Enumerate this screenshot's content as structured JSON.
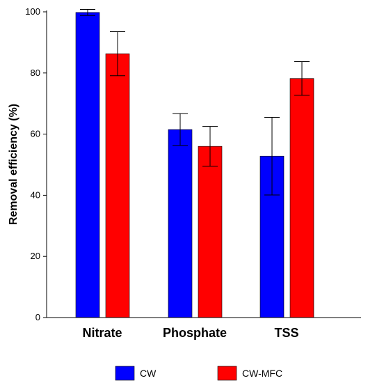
{
  "chart_data": {
    "type": "bar",
    "categories": [
      "Nitrate",
      "Phosphate",
      "TSS"
    ],
    "series": [
      {
        "name": "CW",
        "color": "#0000ff",
        "values": [
          99.8,
          61.5,
          52.8
        ],
        "error": [
          1.0,
          5.2,
          12.7
        ]
      },
      {
        "name": "CW-MFC",
        "color": "#ff0000",
        "values": [
          86.3,
          56.0,
          78.2
        ],
        "error": [
          7.2,
          6.5,
          5.5
        ]
      }
    ],
    "ylabel": "Removal efficiency (%)",
    "xlabel": "",
    "ylim": [
      0,
      100
    ],
    "yticks": [
      0,
      20,
      40,
      60,
      80,
      100
    ],
    "grid": false,
    "legend": "bottom"
  }
}
